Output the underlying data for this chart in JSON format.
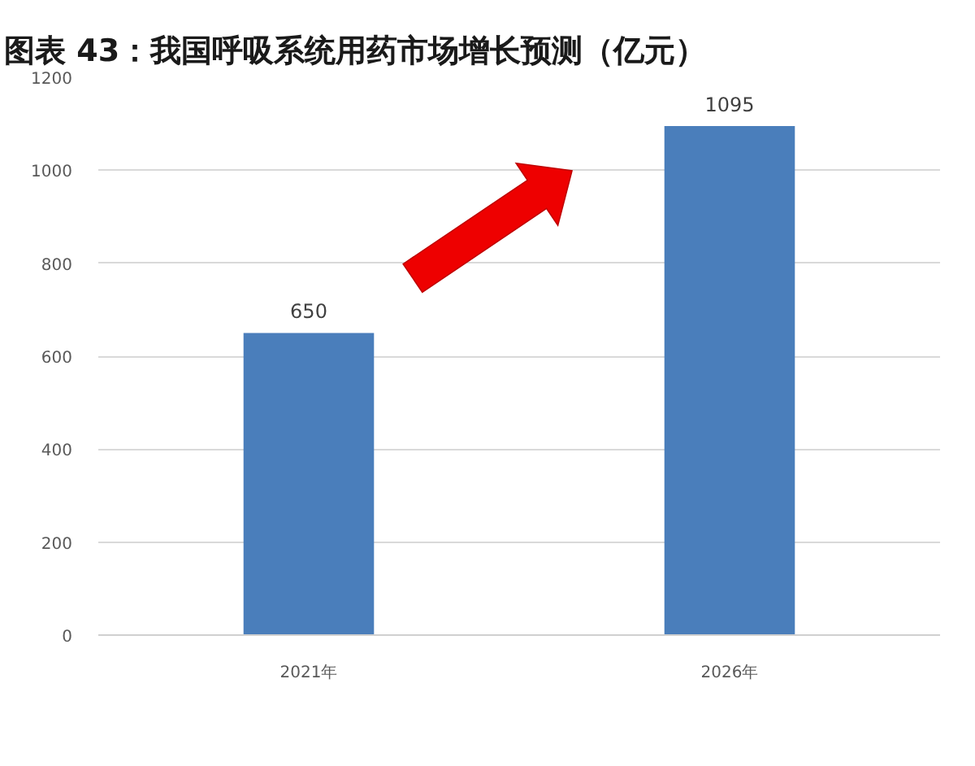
{
  "chart_data": {
    "type": "bar",
    "title": "图表 43：我国呼吸系统用药市场增长预测（亿元）",
    "categories": [
      "2021年",
      "2026年"
    ],
    "values": [
      650,
      1095
    ],
    "color": "#4a7ebb",
    "ylim": [
      0,
      1200
    ],
    "yticks": [
      0,
      200,
      400,
      600,
      800,
      1000,
      1200
    ],
    "grid": "y",
    "data_labels": true
  }
}
